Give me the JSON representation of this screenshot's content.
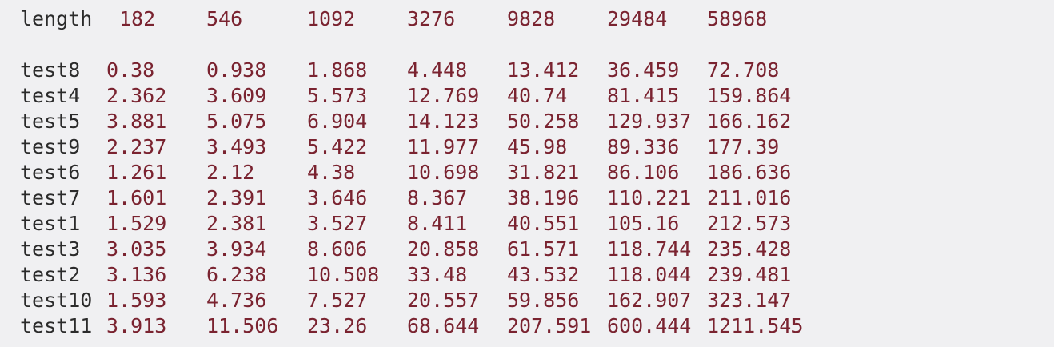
{
  "table": {
    "header_label": "length",
    "lengths": [
      "182",
      "546",
      "1092",
      "3276",
      "9828",
      "29484",
      "58968"
    ],
    "rows": [
      {
        "name": "test8",
        "values": [
          "0.38",
          "0.938",
          "1.868",
          "4.448",
          "13.412",
          "36.459",
          "72.708"
        ]
      },
      {
        "name": "test4",
        "values": [
          "2.362",
          "3.609",
          "5.573",
          "12.769",
          "40.74",
          "81.415",
          "159.864"
        ]
      },
      {
        "name": "test5",
        "values": [
          "3.881",
          "5.075",
          "6.904",
          "14.123",
          "50.258",
          "129.937",
          "166.162"
        ]
      },
      {
        "name": "test9",
        "values": [
          "2.237",
          "3.493",
          "5.422",
          "11.977",
          "45.98",
          "89.336",
          "177.39"
        ]
      },
      {
        "name": "test6",
        "values": [
          "1.261",
          "2.12",
          "4.38",
          "10.698",
          "31.821",
          "86.106",
          "186.636"
        ]
      },
      {
        "name": "test7",
        "values": [
          "1.601",
          "2.391",
          "3.646",
          "8.367",
          "38.196",
          "110.221",
          "211.016"
        ]
      },
      {
        "name": "test1",
        "values": [
          "1.529",
          "2.381",
          "3.527",
          "8.411",
          "40.551",
          "105.16",
          "212.573"
        ]
      },
      {
        "name": "test3",
        "values": [
          "3.035",
          "3.934",
          "8.606",
          "20.858",
          "61.571",
          "118.744",
          "235.428"
        ]
      },
      {
        "name": "test2",
        "values": [
          "3.136",
          "6.238",
          "10.508",
          "33.48",
          "43.532",
          "118.044",
          "239.481"
        ]
      },
      {
        "name": "test10",
        "values": [
          "1.593",
          "4.736",
          "7.527",
          "20.557",
          "59.856",
          "162.907",
          "323.147"
        ]
      },
      {
        "name": "test11",
        "values": [
          "3.913",
          "11.506",
          "23.26",
          "68.644",
          "207.591",
          "600.444",
          "1211.545"
        ]
      }
    ]
  }
}
